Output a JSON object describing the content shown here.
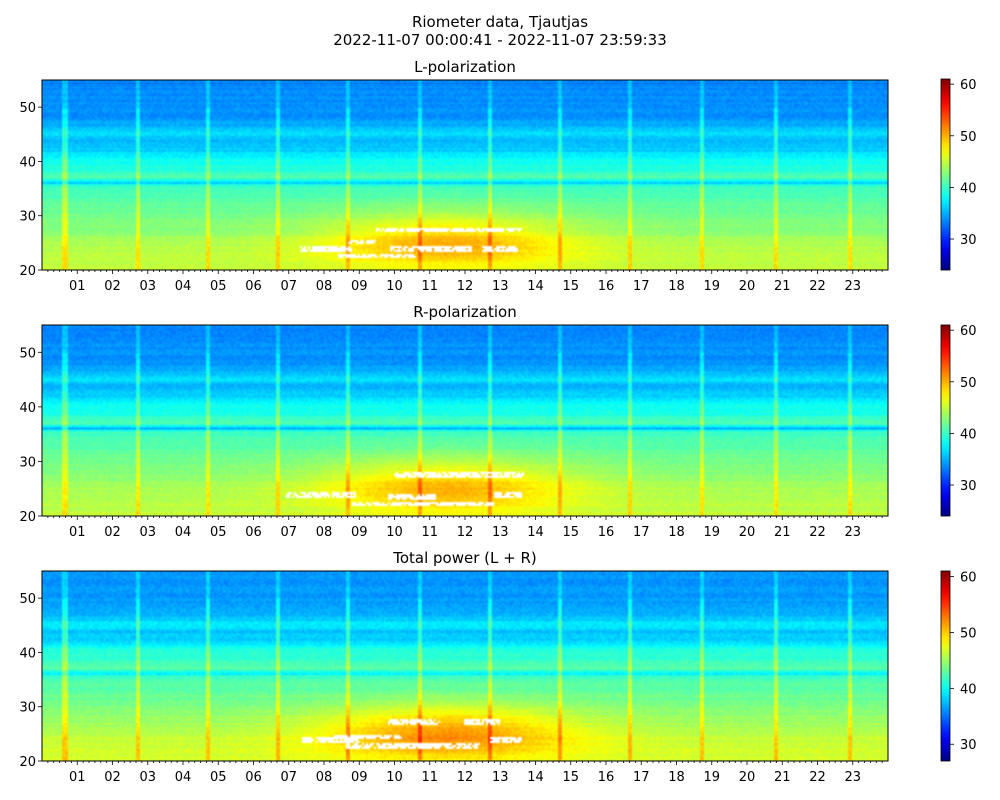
{
  "figure": {
    "title_line1": "Riometer data, Tjautjas",
    "title_line2": "2022-11-07 00:00:41 - 2022-11-07 23:59:33"
  },
  "chart_data": [
    {
      "type": "heatmap",
      "title": "L-polarization",
      "xlabel": "",
      "ylabel": "",
      "x_range_hours": [
        0,
        24
      ],
      "xticks": [
        "01",
        "02",
        "03",
        "04",
        "05",
        "06",
        "07",
        "08",
        "09",
        "10",
        "11",
        "12",
        "13",
        "14",
        "15",
        "16",
        "17",
        "18",
        "19",
        "20",
        "21",
        "22",
        "23"
      ],
      "ylim": [
        20,
        55
      ],
      "yticks": [
        20,
        30,
        40,
        50
      ],
      "colormap": "jet",
      "color_range": [
        24,
        61
      ],
      "colorbar_ticks": [
        30,
        40,
        50,
        60
      ],
      "background_profile": [
        [
          20,
          45
        ],
        [
          25.5,
          44
        ],
        [
          27,
          43
        ],
        [
          30,
          42
        ],
        [
          33,
          41
        ],
        [
          35.5,
          40
        ],
        [
          36,
          36
        ],
        [
          37,
          41
        ],
        [
          38.5,
          39
        ],
        [
          40,
          38.5
        ],
        [
          41.5,
          37
        ],
        [
          42,
          36
        ],
        [
          44,
          35
        ],
        [
          45,
          37
        ],
        [
          46.5,
          35
        ],
        [
          48,
          34
        ],
        [
          55,
          33.5
        ]
      ],
      "daytime_enhancement": {
        "center_hour": 11.5,
        "width_hours": 3.6,
        "peak_freq": 25,
        "freq_width": 5.5,
        "amplitude": 6
      },
      "vertical_stripes_hours": [
        0.65,
        2.7,
        4.7,
        6.7,
        8.7,
        10.7,
        12.7,
        14.7,
        16.7,
        18.7,
        20.8,
        22.9
      ],
      "stripe_amplitude": 3.5,
      "saturated_bands": [
        {
          "freq": 23.8,
          "hours": [
            7.3,
            8.8
          ],
          "value": 62
        },
        {
          "freq": 23.8,
          "hours": [
            9.9,
            12.2
          ],
          "value": 62
        },
        {
          "freq": 23.8,
          "hours": [
            12.5,
            13.5
          ],
          "value": 62
        },
        {
          "freq": 27.3,
          "hours": [
            9.5,
            13.6
          ],
          "value": 62
        },
        {
          "freq": 22.5,
          "hours": [
            8.4,
            10.6
          ],
          "value": 62
        },
        {
          "freq": 25.2,
          "hours": [
            8.7,
            9.5
          ],
          "value": 62
        }
      ]
    },
    {
      "type": "heatmap",
      "title": "R-polarization",
      "xlabel": "",
      "ylabel": "",
      "x_range_hours": [
        0,
        24
      ],
      "xticks": [
        "01",
        "02",
        "03",
        "04",
        "05",
        "06",
        "07",
        "08",
        "09",
        "10",
        "11",
        "12",
        "13",
        "14",
        "15",
        "16",
        "17",
        "18",
        "19",
        "20",
        "21",
        "22",
        "23"
      ],
      "ylim": [
        20,
        55
      ],
      "yticks": [
        20,
        30,
        40,
        50
      ],
      "colormap": "jet",
      "color_range": [
        24,
        61
      ],
      "colorbar_ticks": [
        30,
        40,
        50,
        60
      ],
      "background_profile": [
        [
          20,
          45
        ],
        [
          25.5,
          44
        ],
        [
          27,
          43
        ],
        [
          30,
          42
        ],
        [
          33,
          41
        ],
        [
          35.5,
          40
        ],
        [
          36,
          35
        ],
        [
          37,
          41
        ],
        [
          38.5,
          39
        ],
        [
          40,
          38.5
        ],
        [
          41.5,
          37
        ],
        [
          42,
          36
        ],
        [
          44,
          35
        ],
        [
          45,
          37
        ],
        [
          46.5,
          35
        ],
        [
          48,
          34
        ],
        [
          55,
          33.5
        ]
      ],
      "daytime_enhancement": {
        "center_hour": 11.5,
        "width_hours": 3.6,
        "peak_freq": 25,
        "freq_width": 5.5,
        "amplitude": 6
      },
      "vertical_stripes_hours": [
        0.65,
        2.7,
        4.7,
        6.7,
        8.7,
        10.7,
        12.7,
        14.7,
        16.7,
        18.7,
        20.8,
        22.9
      ],
      "stripe_amplitude": 3.5,
      "saturated_bands": [
        {
          "freq": 23.8,
          "hours": [
            6.9,
            8.9
          ],
          "value": 62
        },
        {
          "freq": 23.8,
          "hours": [
            12.8,
            13.6
          ],
          "value": 62
        },
        {
          "freq": 27.6,
          "hours": [
            10.0,
            13.7
          ],
          "value": 62
        },
        {
          "freq": 22.3,
          "hours": [
            8.8,
            12.8
          ],
          "value": 62
        },
        {
          "freq": 23.5,
          "hours": [
            9.8,
            11.2
          ],
          "value": 62
        }
      ]
    },
    {
      "type": "heatmap",
      "title": "Total power (L + R)",
      "xlabel": "",
      "ylabel": "",
      "x_range_hours": [
        0,
        24
      ],
      "xticks": [
        "01",
        "02",
        "03",
        "04",
        "05",
        "06",
        "07",
        "08",
        "09",
        "10",
        "11",
        "12",
        "13",
        "14",
        "15",
        "16",
        "17",
        "18",
        "19",
        "20",
        "21",
        "22",
        "23"
      ],
      "ylim": [
        20,
        55
      ],
      "yticks": [
        20,
        30,
        40,
        50
      ],
      "colormap": "jet",
      "color_range": [
        27,
        61
      ],
      "colorbar_ticks": [
        30,
        40,
        50,
        60
      ],
      "background_profile": [
        [
          20,
          47
        ],
        [
          25.5,
          46
        ],
        [
          27,
          45
        ],
        [
          30,
          44
        ],
        [
          33,
          43
        ],
        [
          35.5,
          42
        ],
        [
          36,
          39
        ],
        [
          37,
          43
        ],
        [
          38.5,
          41.5
        ],
        [
          40,
          41
        ],
        [
          41.5,
          39.5
        ],
        [
          42,
          38.5
        ],
        [
          44,
          37.5
        ],
        [
          45,
          39.5
        ],
        [
          46.5,
          37.5
        ],
        [
          48,
          36.5
        ],
        [
          55,
          36
        ]
      ],
      "daytime_enhancement": {
        "center_hour": 11.5,
        "width_hours": 3.6,
        "peak_freq": 25,
        "freq_width": 5.5,
        "amplitude": 6
      },
      "vertical_stripes_hours": [
        0.65,
        2.7,
        4.7,
        6.7,
        8.7,
        10.7,
        12.7,
        14.7,
        16.7,
        18.7,
        20.8,
        22.9
      ],
      "stripe_amplitude": 3.5,
      "saturated_bands": [
        {
          "freq": 23.8,
          "hours": [
            7.4,
            9.0
          ],
          "value": 62
        },
        {
          "freq": 23.8,
          "hours": [
            12.7,
            13.6
          ],
          "value": 62
        },
        {
          "freq": 27.2,
          "hours": [
            9.8,
            11.3
          ],
          "value": 62
        },
        {
          "freq": 27.2,
          "hours": [
            12.0,
            13.0
          ],
          "value": 62
        },
        {
          "freq": 22.8,
          "hours": [
            8.6,
            12.4
          ],
          "value": 62
        },
        {
          "freq": 24.5,
          "hours": [
            8.3,
            10.2
          ],
          "value": 62
        }
      ]
    }
  ]
}
